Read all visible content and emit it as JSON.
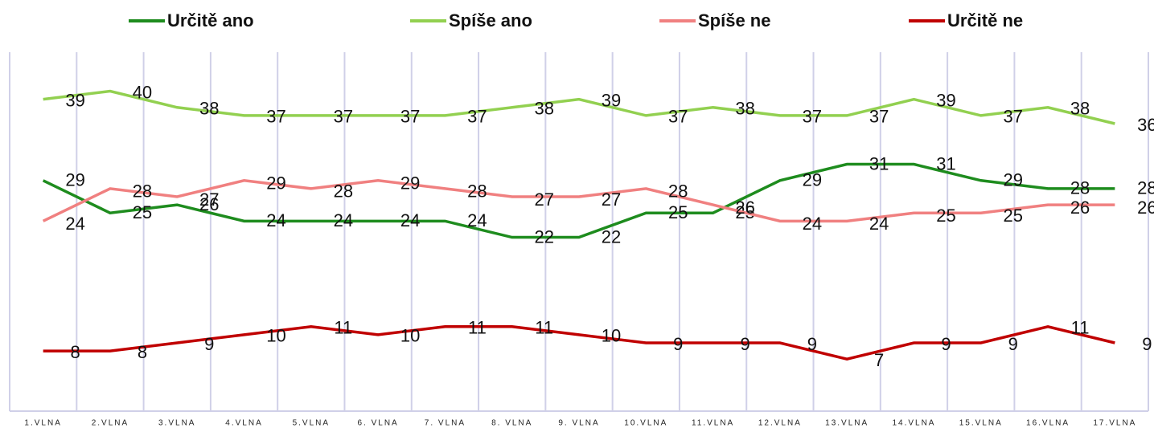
{
  "chart_data": {
    "type": "line",
    "categories": [
      "1.VLNA",
      "2.VLNA",
      "3.VLNA",
      "4.VLNA",
      "5.VLNA",
      "6. VLNA",
      "7. VLNA",
      "8. VLNA",
      "9. VLNA",
      "10.VLNA",
      "11.VLNA",
      "12.VLNA",
      "13.VLNA",
      "14.VLNA",
      "15.VLNA",
      "16.VLNA",
      "17.VLNA"
    ],
    "series": [
      {
        "name": "Určitě ano",
        "color": "#1e8c1e",
        "values": [
          29,
          25,
          26,
          24,
          24,
          24,
          24,
          22,
          22,
          25,
          25,
          29,
          31,
          31,
          29,
          28,
          28
        ]
      },
      {
        "name": "Spíše ano",
        "color": "#92d050",
        "values": [
          39,
          40,
          38,
          37,
          37,
          37,
          37,
          38,
          39,
          37,
          38,
          37,
          37,
          39,
          37,
          38,
          36
        ]
      },
      {
        "name": "Spíše ne",
        "color": "#f08080",
        "values": [
          24,
          28,
          27,
          29,
          28,
          29,
          28,
          27,
          27,
          28,
          26,
          24,
          24,
          25,
          25,
          26,
          26
        ]
      },
      {
        "name": "Určitě ne",
        "color": "#c00000",
        "values": [
          8,
          8,
          9,
          10,
          11,
          10,
          11,
          11,
          10,
          9,
          9,
          9,
          7,
          9,
          9,
          11,
          9
        ]
      }
    ],
    "ylim": [
      0,
      45
    ],
    "grid": true,
    "legend": "top"
  }
}
